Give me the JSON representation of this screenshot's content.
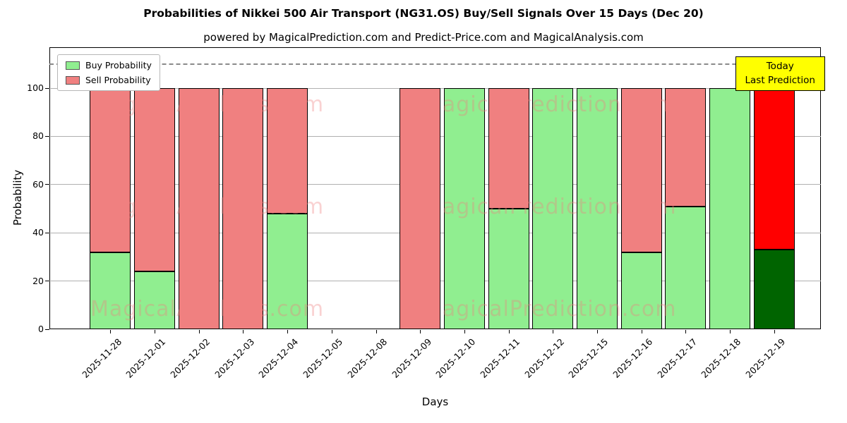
{
  "chart_data": {
    "type": "bar",
    "stacked": true,
    "title": "Probabilities of Nikkei 500 Air Transport (NG31.OS) Buy/Sell Signals Over 15 Days (Dec 20)",
    "subtitle": "powered by MagicalPrediction.com and Predict-Price.com and MagicalAnalysis.com",
    "xlabel": "Days",
    "ylabel": "Probability",
    "categories": [
      "2025-11-28",
      "2025-12-01",
      "2025-12-02",
      "2025-12-03",
      "2025-12-04",
      "2025-12-05",
      "2025-12-08",
      "2025-12-09",
      "2025-12-10",
      "2025-12-11",
      "2025-12-12",
      "2025-12-15",
      "2025-12-16",
      "2025-12-17",
      "2025-12-18",
      "2025-12-19"
    ],
    "series": [
      {
        "name": "Buy Probability",
        "color": "#90EE90",
        "values": [
          32,
          24,
          0,
          0,
          48,
          0,
          0,
          0,
          100,
          50,
          100,
          100,
          32,
          51,
          100,
          33
        ]
      },
      {
        "name": "Sell Probability",
        "color": "#F08080",
        "values": [
          68,
          76,
          100,
          100,
          52,
          0,
          0,
          100,
          0,
          50,
          0,
          0,
          68,
          49,
          0,
          67
        ]
      }
    ],
    "today_index": 15,
    "today_colors": {
      "buy": "#006400",
      "sell": "#FF0000"
    },
    "yticks": [
      0,
      20,
      40,
      60,
      80,
      100
    ],
    "ylim": [
      0,
      117
    ],
    "dashed_line_y": 110,
    "grid": true,
    "legend_position": "upper left"
  },
  "today_box": {
    "line1": "Today",
    "line2": "Last Prediction",
    "bg": "#FFFF00"
  },
  "watermarks": {
    "analysis": "MagicalAnalysis.com",
    "prediction": "MagicalPrediction.com"
  },
  "colors": {
    "watermark": "#f08080",
    "grid": "#b0b0b0",
    "bar_edge": "#000000"
  }
}
